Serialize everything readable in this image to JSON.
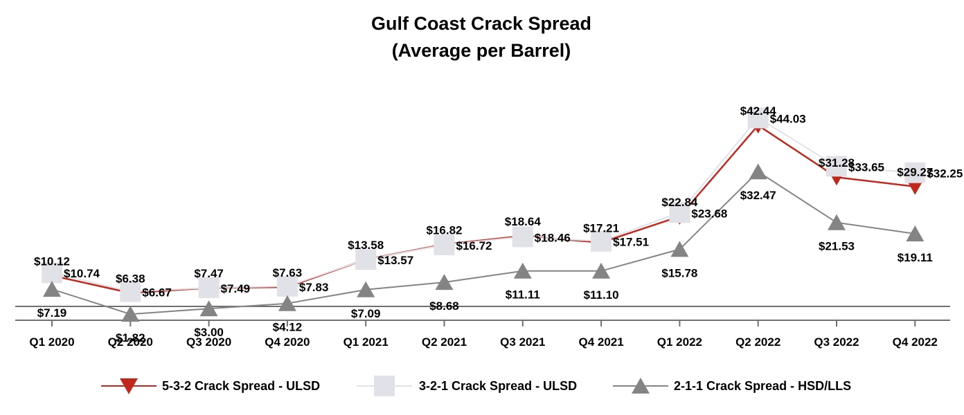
{
  "chart_data": {
    "type": "line",
    "title": "Gulf Coast Crack Spread",
    "subtitle": "(Average per Barrel)",
    "xlabel": "",
    "ylabel": "",
    "ylim": [
      -2,
      46
    ],
    "grid": false,
    "legend_position": "bottom",
    "categories": [
      "Q1 2020",
      "Q2 2020",
      "Q3 2020",
      "Q4 2020",
      "Q1 2021",
      "Q2 2021",
      "Q3 2021",
      "Q4 2021",
      "Q1 2022",
      "Q2 2022",
      "Q3 2022",
      "Q4 2022"
    ],
    "series": [
      {
        "name": "5-3-2 Crack Spread - ULSD",
        "marker": "triangle-down",
        "color": "#c0281e",
        "values": [
          10.12,
          6.38,
          7.47,
          7.63,
          13.58,
          16.82,
          18.64,
          17.21,
          22.84,
          42.44,
          31.28,
          29.27
        ],
        "labels": [
          "$10.12",
          "$6.38",
          "$7.47",
          "$7.63",
          "$13.58",
          "$16.82",
          "$18.64",
          "$17.21",
          "$22.84",
          "$42.44",
          "$31.28",
          "$29.27"
        ]
      },
      {
        "name": "3-2-1 Crack Spread - ULSD",
        "marker": "square",
        "color": "#e1e1e8",
        "values": [
          10.74,
          6.67,
          7.49,
          7.83,
          13.57,
          16.72,
          18.46,
          17.51,
          23.68,
          44.03,
          33.65,
          32.25
        ],
        "labels": [
          "$10.74",
          "$6.67",
          "$7.49",
          "$7.83",
          "$13.57",
          "$16.72",
          "$18.46",
          "$17.51",
          "$23.68",
          "$44.03",
          "$33.65",
          "$32.25"
        ]
      },
      {
        "name": "2-1-1 Crack Spread - HSD/LLS",
        "marker": "triangle-up",
        "color": "#848484",
        "values": [
          7.19,
          1.82,
          3.0,
          4.12,
          7.09,
          8.68,
          11.11,
          11.1,
          15.78,
          32.47,
          21.53,
          19.11
        ],
        "labels": [
          "$7.19",
          "$1.82",
          "$3.00",
          "$4.12",
          "$7.09",
          "$8.68",
          "$11.11",
          "$11.10",
          "$15.78",
          "$32.47",
          "$21.53",
          "$19.11"
        ]
      }
    ]
  }
}
